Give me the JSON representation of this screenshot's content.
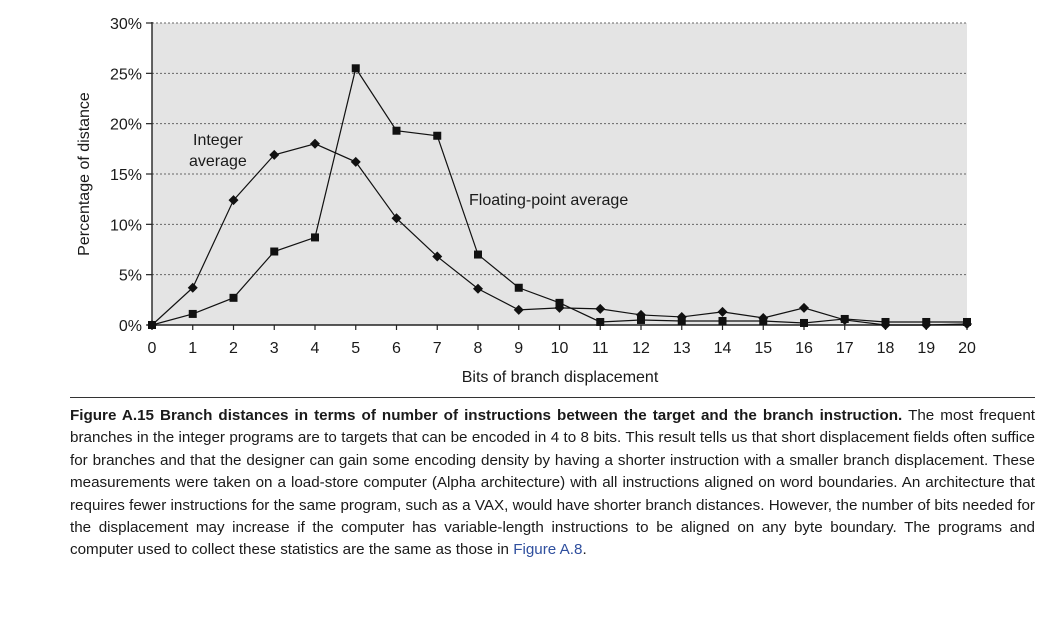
{
  "chart_data": {
    "type": "line",
    "xlabel": "Bits of branch displacement",
    "ylabel": "Percentage of distance",
    "x": [
      0,
      1,
      2,
      3,
      4,
      5,
      6,
      7,
      8,
      9,
      10,
      11,
      12,
      13,
      14,
      15,
      16,
      17,
      18,
      19,
      20
    ],
    "xlim": [
      0,
      20
    ],
    "ylim": [
      0,
      30
    ],
    "yticks": [
      "0%",
      "5%",
      "10%",
      "15%",
      "20%",
      "25%",
      "30%"
    ],
    "grid": "horizontal dotted",
    "background": "#e4e4e4",
    "series": [
      {
        "name": "Integer average",
        "marker": "diamond",
        "values": [
          0,
          3.7,
          12.4,
          16.9,
          18.0,
          16.2,
          10.6,
          6.8,
          3.6,
          1.5,
          1.7,
          1.6,
          1.0,
          0.8,
          1.3,
          0.7,
          1.7,
          0.5,
          0.0,
          0.0,
          0.1
        ]
      },
      {
        "name": "Floating-point average",
        "marker": "square",
        "values": [
          0,
          1.1,
          2.7,
          7.3,
          8.7,
          25.5,
          19.3,
          18.8,
          7.0,
          3.7,
          2.2,
          0.3,
          0.5,
          0.4,
          0.4,
          0.4,
          0.2,
          0.6,
          0.3,
          0.3,
          0.3
        ]
      }
    ],
    "annotations": [
      "Integer",
      "average",
      "Floating-point average"
    ]
  },
  "caption": {
    "lead": "Figure A.15  Branch distances in terms of number of instructions between the target and the branch instruction.",
    "body": "The most frequent branches in the integer programs are to targets that can be encoded in 4 to 8 bits. This result tells us that short displacement fields often suffice for branches and that the designer can gain some encoding density by having a shorter instruction with a smaller branch displacement. These measurements were taken on a load-store computer (Alpha architecture) with all instructions aligned on word boundaries. An architecture that requires fewer instructions for the same program, such as a VAX, would have shorter branch distances. However, the number of bits needed for the displacement may increase if the computer has variable-length instructions to be aligned on any byte boundary. The programs and computer used to collect these statistics are the same as those in ",
    "ref": "Figure A.8",
    "end": "."
  }
}
